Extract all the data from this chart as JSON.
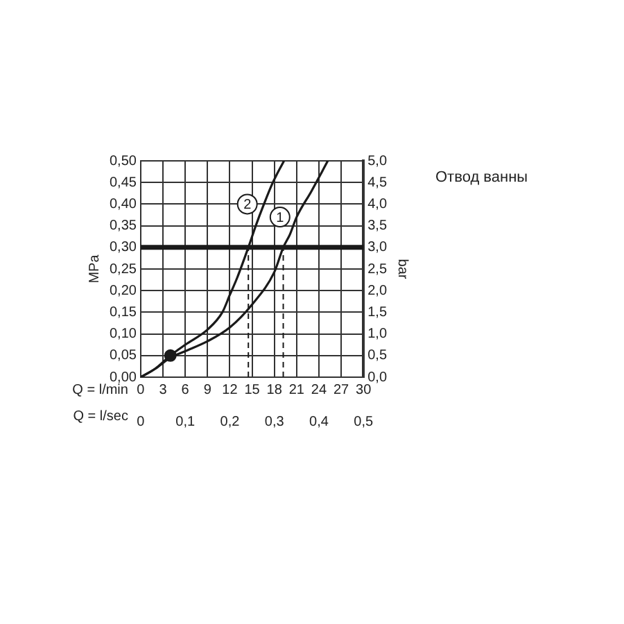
{
  "chart_data": {
    "type": "line",
    "title": "Отвод ванны",
    "xlabel": "Q = l/min",
    "x2label": "Q = l/sec",
    "ylabel": "MPa",
    "y2label": "bar",
    "xlim": [
      0,
      30
    ],
    "xticks": [
      0,
      3,
      6,
      9,
      12,
      15,
      18,
      21,
      24,
      27,
      30
    ],
    "x2lim": [
      0,
      0.5
    ],
    "x2ticks": [
      0,
      {
        "value": 0.1,
        "label": "0,1"
      },
      {
        "value": 0.2,
        "label": "0,2"
      },
      {
        "value": 0.3,
        "label": "0,3"
      },
      {
        "value": 0.4,
        "label": "0,4"
      },
      {
        "value": 0.5,
        "label": "0,5"
      }
    ],
    "ylim": [
      0,
      0.5
    ],
    "yticks": [
      {
        "value": 0,
        "label": "0,00"
      },
      {
        "value": 0.05,
        "label": "0,05"
      },
      {
        "value": 0.1,
        "label": "0,10"
      },
      {
        "value": 0.15,
        "label": "0,15"
      },
      {
        "value": 0.2,
        "label": "0,20"
      },
      {
        "value": 0.25,
        "label": "0,25"
      },
      {
        "value": 0.3,
        "label": "0,30"
      },
      {
        "value": 0.35,
        "label": "0,35"
      },
      {
        "value": 0.4,
        "label": "0,40"
      },
      {
        "value": 0.45,
        "label": "0,45"
      },
      {
        "value": 0.5,
        "label": "0,50"
      }
    ],
    "y2lim": [
      0,
      5
    ],
    "y2ticks": [
      {
        "value": 0,
        "label": "0,0"
      },
      {
        "value": 0.5,
        "label": "0,5"
      },
      {
        "value": 1,
        "label": "1,0"
      },
      {
        "value": 1.5,
        "label": "1,5"
      },
      {
        "value": 2,
        "label": "2,0"
      },
      {
        "value": 2.5,
        "label": "2,5"
      },
      {
        "value": 3,
        "label": "3,0"
      },
      {
        "value": 3.5,
        "label": "3,5"
      },
      {
        "value": 4,
        "label": "4,0"
      },
      {
        "value": 4.5,
        "label": "4,5"
      },
      {
        "value": 5,
        "label": "5,0"
      }
    ],
    "grid": true,
    "legend": false,
    "line_style": "solid",
    "series": [
      {
        "name": "1",
        "color": "#1a1a1a",
        "marker": "none",
        "x": [
          0,
          2,
          4,
          6,
          9,
          12,
          15,
          18,
          19.2,
          20.1,
          21,
          23,
          25.2
        ],
        "values": [
          0,
          0.02,
          0.045,
          0.06,
          0.083,
          0.115,
          0.168,
          0.243,
          0.3,
          0.33,
          0.37,
          0.43,
          0.5
        ]
      },
      {
        "name": "2",
        "color": "#1a1a1a",
        "marker": "none",
        "x": [
          0,
          2,
          4,
          6,
          9,
          11,
          12,
          13,
          14.5,
          15.5,
          16.6,
          17.8,
          19.3
        ],
        "values": [
          0,
          0.02,
          0.05,
          0.075,
          0.11,
          0.15,
          0.19,
          0.23,
          0.3,
          0.35,
          0.4,
          0.45,
          0.5
        ]
      },
      {
        "type": "scatter",
        "color": "#1a1a1a",
        "marker": "circle",
        "x": [
          4
        ],
        "values": [
          0.05
        ]
      }
    ],
    "ref_lines": [
      {
        "axis": "y",
        "value": 0.3,
        "color": "#1a1a1a",
        "line_style": "solid"
      },
      {
        "axis": "x",
        "value": 14.5,
        "color": "#1a1a1a",
        "line_style": "dashed"
      },
      {
        "axis": "x",
        "value": 19.2,
        "color": "#1a1a1a",
        "line_style": "dashed"
      }
    ]
  }
}
